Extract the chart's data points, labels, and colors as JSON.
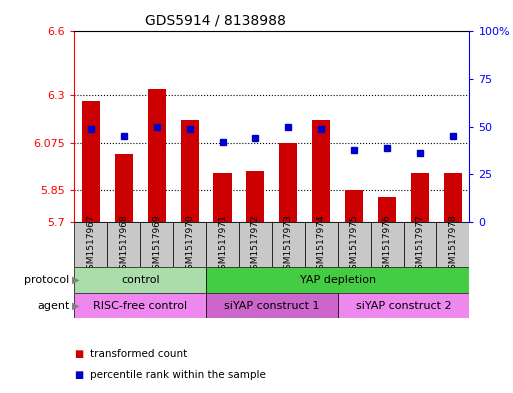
{
  "title": "GDS5914 / 8138988",
  "samples": [
    "GSM1517967",
    "GSM1517968",
    "GSM1517969",
    "GSM1517970",
    "GSM1517971",
    "GSM1517972",
    "GSM1517973",
    "GSM1517974",
    "GSM1517975",
    "GSM1517976",
    "GSM1517977",
    "GSM1517978"
  ],
  "transformed_counts": [
    6.27,
    6.02,
    6.33,
    6.18,
    5.93,
    5.94,
    6.075,
    6.18,
    5.85,
    5.82,
    5.93,
    5.93
  ],
  "percentile_ranks": [
    49,
    45,
    50,
    49,
    42,
    44,
    50,
    49,
    38,
    39,
    36,
    45
  ],
  "ylim_left": [
    5.7,
    6.6
  ],
  "ylim_right": [
    0,
    100
  ],
  "yticks_left": [
    5.7,
    5.85,
    6.075,
    6.3,
    6.6
  ],
  "yticks_left_labels": [
    "5.7",
    "5.85",
    "6.075",
    "6.3",
    "6.6"
  ],
  "yticks_right": [
    0,
    25,
    50,
    75,
    100
  ],
  "yticks_right_labels": [
    "0",
    "25",
    "50",
    "75",
    "100%"
  ],
  "hlines": [
    5.85,
    6.075,
    6.3
  ],
  "top_hline": 6.6,
  "bar_color": "#cc0000",
  "dot_color": "#0000cc",
  "cell_bg_color": "#c8c8c8",
  "protocol_groups": [
    {
      "label": "control",
      "start": 0,
      "end": 3,
      "color": "#aaddaa"
    },
    {
      "label": "YAP depletion",
      "start": 4,
      "end": 11,
      "color": "#44cc44"
    }
  ],
  "agent_groups": [
    {
      "label": "RISC-free control",
      "start": 0,
      "end": 3,
      "color": "#ee88ee"
    },
    {
      "label": "siYAP construct 1",
      "start": 4,
      "end": 7,
      "color": "#cc66cc"
    },
    {
      "label": "siYAP construct 2",
      "start": 8,
      "end": 11,
      "color": "#ee88ee"
    }
  ],
  "legend_items": [
    {
      "label": "transformed count",
      "color": "#cc0000"
    },
    {
      "label": "percentile rank within the sample",
      "color": "#0000cc"
    }
  ],
  "xlabel_protocol": "protocol",
  "xlabel_agent": "agent"
}
